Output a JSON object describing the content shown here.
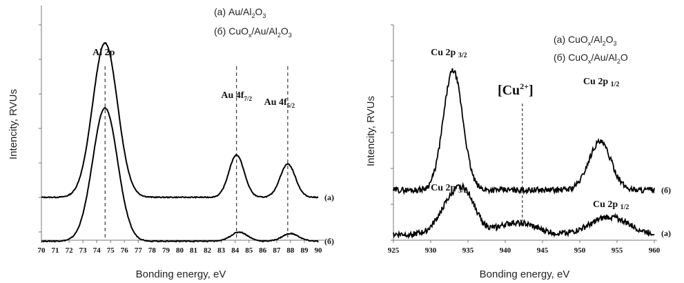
{
  "chart_data": [
    {
      "type": "line",
      "xlabel": "Bonding energy, eV",
      "ylabel": "Intencity, RVUs",
      "xlim": [
        70,
        90
      ],
      "xticks": [
        70,
        71,
        72,
        73,
        74,
        75,
        76,
        77,
        78,
        79,
        80,
        81,
        82,
        83,
        84,
        85,
        86,
        87,
        88,
        89,
        90
      ],
      "legend": {
        "position": "top-right",
        "items": [
          {
            "prefix": "(а) Au/Al",
            "s1": "2",
            "mid": "O",
            "s2": "3"
          },
          {
            "prefix": "(б) CuO",
            "sx": "x",
            "mid": "/Au/Al",
            "s1": "2",
            "mid2": "O",
            "s2": "3"
          }
        ]
      },
      "series": [
        {
          "label": "(а)",
          "baseline": 0.27,
          "peaks": [
            [
              74.6,
              1.02,
              0.9
            ],
            [
              84.1,
              0.28,
              0.55
            ],
            [
              87.8,
              0.22,
              0.55
            ]
          ]
        },
        {
          "label": "(б)",
          "baseline": -0.02,
          "peaks": [
            [
              74.6,
              0.88,
              0.9
            ],
            [
              84.3,
              0.06,
              0.6
            ],
            [
              88.0,
              0.05,
              0.6
            ]
          ]
        }
      ],
      "annotations": [
        {
          "text": "Al 2p",
          "x": 74.6
        },
        {
          "text": "Au 4f",
          "sub": "7/2",
          "x": 84.1
        },
        {
          "text": "Au 4f",
          "sub": "5/2",
          "x": 87.8
        }
      ],
      "grid": false
    },
    {
      "type": "line",
      "xlabel": "Bonding energy, eV",
      "ylabel": "Intencity, RVUs",
      "xlim": [
        925,
        960
      ],
      "xticks": [
        925,
        930,
        935,
        940,
        945,
        950,
        955,
        960
      ],
      "legend": {
        "position": "top-right",
        "items": [
          {
            "prefix": "(а) CuO",
            "sx": "x",
            "mid": "/Al",
            "s1": "2",
            "mid2": "O",
            "s2": "3"
          },
          {
            "prefix": "(б) CuO",
            "sx": "x",
            "mid": "/Au/Al",
            "s1": "2",
            "mid2": "O",
            "s2": ""
          }
        ]
      },
      "series": [
        {
          "label": "(б)",
          "baseline": 0.25,
          "peaks": [
            [
              933.0,
              0.62,
              1.3
            ],
            [
              952.7,
              0.25,
              1.5
            ]
          ]
        },
        {
          "label": "(а)",
          "baseline": 0.02,
          "peaks": [
            [
              932.6,
              0.15,
              1.6
            ],
            [
              934.8,
              0.17,
              1.4
            ],
            [
              941.5,
              0.06,
              2.5
            ],
            [
              954.0,
              0.09,
              2.5
            ]
          ]
        }
      ],
      "annotations": [
        {
          "text": "Cu 2p",
          "sub": "3/2",
          "x": 933.0,
          "series": 0
        },
        {
          "text": "Cu 2p",
          "sub": "1/2",
          "x": 952.7,
          "series": 0
        },
        {
          "text": "Cu 2p",
          "sub": "3/2",
          "x": 933.0,
          "series": 1
        },
        {
          "text": "Cu 2p",
          "sub": "1/2",
          "x": 954.0,
          "series": 1
        },
        {
          "text": "[Cu",
          "sup": "2+",
          "close": "]",
          "x": 942.3
        }
      ],
      "grid": false
    }
  ]
}
